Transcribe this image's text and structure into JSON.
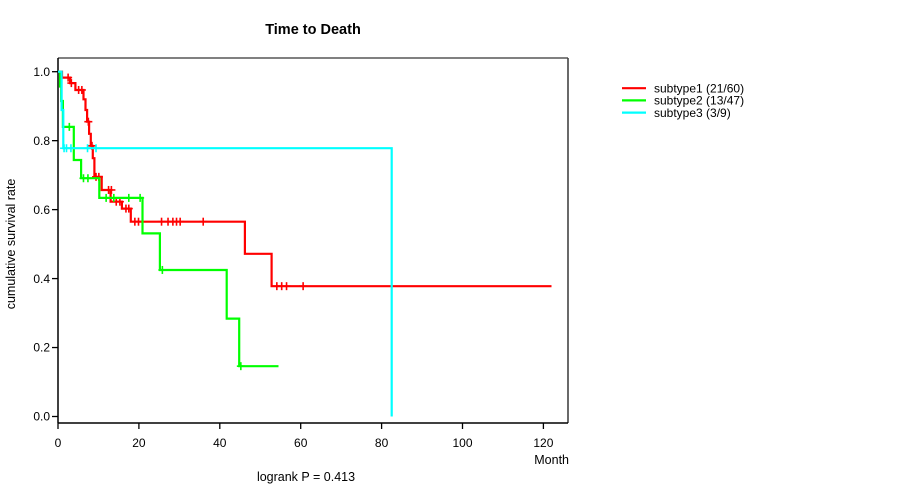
{
  "chart_data": {
    "type": "line",
    "variant": "kaplan-meier-step",
    "title": "Time to Death",
    "xlabel": "Month",
    "ylabel": "cumulative survival rate",
    "annotation": "logrank P = 0.413",
    "xlim": [
      0,
      126
    ],
    "ylim": [
      0,
      1
    ],
    "xticks": [
      0,
      20,
      40,
      60,
      80,
      100,
      120
    ],
    "yticks": [
      0.0,
      0.2,
      0.4,
      0.6,
      0.8,
      1.0
    ],
    "grid": false,
    "legend_position": "right-outside",
    "frame_colors": {
      "top": "#808080",
      "right": "#444444",
      "axis": "#000000"
    },
    "series": [
      {
        "name": "subtype1 (21/60)",
        "color": "#ff0000",
        "steps": [
          [
            0,
            1.0
          ],
          [
            1.0,
            0.983
          ],
          [
            3.0,
            0.967
          ],
          [
            4.3,
            0.947
          ],
          [
            6.3,
            0.92
          ],
          [
            6.8,
            0.889
          ],
          [
            7.2,
            0.855
          ],
          [
            7.7,
            0.82
          ],
          [
            8.1,
            0.785
          ],
          [
            8.6,
            0.749
          ],
          [
            9.0,
            0.695
          ],
          [
            10.8,
            0.657
          ],
          [
            13.0,
            0.623
          ],
          [
            15.8,
            0.603
          ],
          [
            18.0,
            0.565
          ],
          [
            46.2,
            0.472
          ],
          [
            52.8,
            0.378
          ]
        ],
        "end": 122,
        "censors": [
          [
            2.5,
            0.983
          ],
          [
            3.3,
            0.967
          ],
          [
            5.1,
            0.947
          ],
          [
            5.9,
            0.947
          ],
          [
            7.5,
            0.855
          ],
          [
            8.4,
            0.785
          ],
          [
            9.4,
            0.695
          ],
          [
            10.1,
            0.695
          ],
          [
            12.5,
            0.657
          ],
          [
            13.2,
            0.657
          ],
          [
            14.4,
            0.623
          ],
          [
            15.3,
            0.623
          ],
          [
            16.8,
            0.603
          ],
          [
            17.5,
            0.603
          ],
          [
            19.0,
            0.565
          ],
          [
            19.9,
            0.565
          ],
          [
            25.6,
            0.565
          ],
          [
            27.2,
            0.565
          ],
          [
            28.4,
            0.565
          ],
          [
            29.3,
            0.565
          ],
          [
            30.2,
            0.565
          ],
          [
            35.9,
            0.565
          ],
          [
            54.1,
            0.378
          ],
          [
            55.3,
            0.378
          ],
          [
            56.5,
            0.378
          ],
          [
            60.6,
            0.378
          ]
        ]
      },
      {
        "name": "subtype2 (13/47)",
        "color": "#00ff00",
        "steps": [
          [
            0,
            1.0
          ],
          [
            0.5,
            0.957
          ],
          [
            0.8,
            0.915
          ],
          [
            1.2,
            0.84
          ],
          [
            3.9,
            0.744
          ],
          [
            5.7,
            0.691
          ],
          [
            10.2,
            0.634
          ],
          [
            20.9,
            0.531
          ],
          [
            25.2,
            0.425
          ],
          [
            41.7,
            0.284
          ],
          [
            44.8,
            0.146
          ]
        ],
        "end": 54.5,
        "censors": [
          [
            2.8,
            0.84
          ],
          [
            6.3,
            0.691
          ],
          [
            7.4,
            0.691
          ],
          [
            11.9,
            0.634
          ],
          [
            13.8,
            0.634
          ],
          [
            17.5,
            0.634
          ],
          [
            20.3,
            0.634
          ],
          [
            25.8,
            0.425
          ],
          [
            45.2,
            0.146
          ]
        ]
      },
      {
        "name": "subtype3 (3/9)",
        "color": "#00ffff",
        "steps": [
          [
            0,
            1.0
          ],
          [
            0.9,
            0.889
          ],
          [
            1.3,
            0.778
          ],
          [
            82.5,
            0.0
          ]
        ],
        "end": 82.5,
        "censors": [
          [
            1.5,
            0.778
          ],
          [
            2.1,
            0.778
          ],
          [
            3.2,
            0.778
          ],
          [
            7.3,
            0.778
          ],
          [
            9.4,
            0.778
          ]
        ]
      }
    ]
  }
}
